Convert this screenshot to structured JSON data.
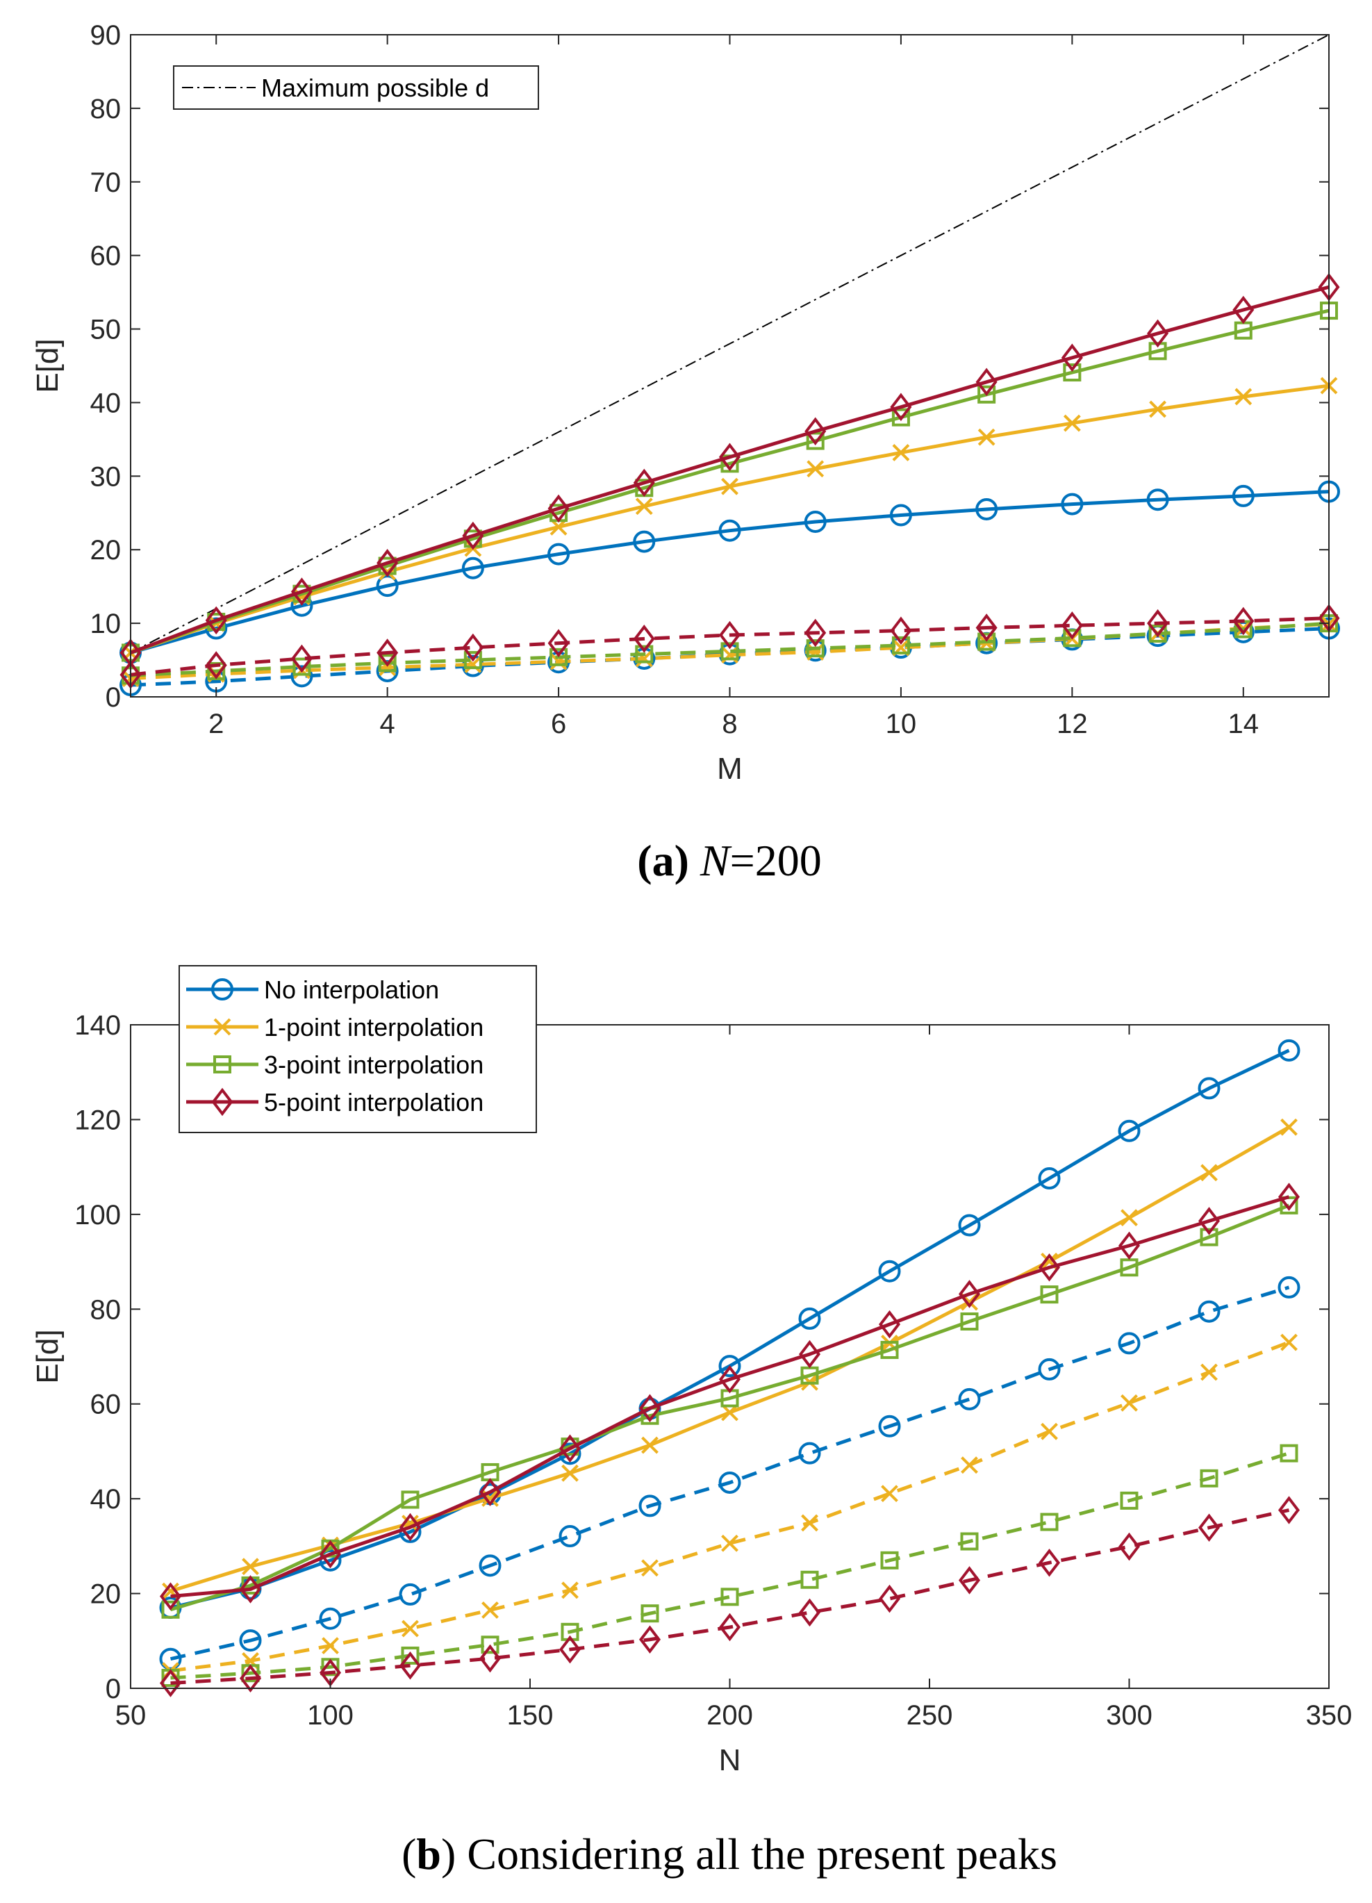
{
  "colors": {
    "no_interp": "#0072BD",
    "one_point": "#EDB120",
    "three_point": "#77AC30",
    "five_point": "#A2142F",
    "max_line": "#000000"
  },
  "chart_data": [
    {
      "type": "line",
      "caption_bold": "a",
      "caption_var": "N",
      "caption_rest": "=200",
      "xlabel": "M",
      "ylabel": "E[d]",
      "xlim": [
        1,
        15
      ],
      "ylim": [
        0,
        90
      ],
      "xticks": [
        2,
        4,
        6,
        8,
        10,
        12,
        14
      ],
      "yticks": [
        0,
        10,
        20,
        30,
        40,
        50,
        60,
        70,
        80,
        90
      ],
      "legend": {
        "position": "top-left",
        "entries": [
          "Maximum possible d"
        ]
      },
      "reference_line": {
        "name": "Maximum possible d",
        "x": [
          1,
          15
        ],
        "y": [
          6,
          90
        ],
        "style": "dash-dot"
      },
      "x": [
        1,
        2,
        3,
        4,
        5,
        6,
        7,
        8,
        9,
        10,
        11,
        12,
        13,
        14,
        15
      ],
      "series": [
        {
          "key": "no_interp",
          "marker": "circle",
          "style": "solid",
          "values": [
            6,
            9.3,
            12.4,
            15.1,
            17.5,
            19.4,
            21.1,
            22.6,
            23.8,
            24.7,
            25.5,
            26.2,
            26.8,
            27.3,
            27.9
          ]
        },
        {
          "key": "one_point",
          "marker": "x",
          "style": "solid",
          "values": [
            6,
            10,
            13.6,
            17,
            20.2,
            23.1,
            25.9,
            28.6,
            31,
            33.2,
            35.3,
            37.2,
            39.1,
            40.8,
            42.3
          ]
        },
        {
          "key": "three_point",
          "marker": "square",
          "style": "solid",
          "values": [
            6,
            10.2,
            14,
            17.8,
            21.5,
            25,
            28.4,
            31.7,
            34.8,
            38,
            41.1,
            44.1,
            47,
            49.8,
            52.5
          ]
        },
        {
          "key": "five_point",
          "marker": "diamond",
          "style": "solid",
          "values": [
            6,
            10.4,
            14.3,
            18.2,
            21.9,
            25.6,
            29.1,
            32.6,
            36.1,
            39.4,
            42.8,
            46.1,
            49.4,
            52.6,
            55.7
          ]
        },
        {
          "key": "no_interp",
          "marker": "circle",
          "style": "dashed",
          "values": [
            1.6,
            2.1,
            2.8,
            3.5,
            4.2,
            4.7,
            5.2,
            5.8,
            6.3,
            6.7,
            7.3,
            7.8,
            8.3,
            8.8,
            9.3
          ]
        },
        {
          "key": "one_point",
          "marker": "x",
          "style": "dashed",
          "values": [
            2.5,
            3.1,
            3.6,
            4,
            4.4,
            4.8,
            5.2,
            5.7,
            6.1,
            6.7,
            7.3,
            7.9,
            8.6,
            9.3,
            9.9
          ]
        },
        {
          "key": "three_point",
          "marker": "square",
          "style": "dashed",
          "values": [
            2.9,
            3.5,
            4.1,
            4.6,
            5,
            5.4,
            5.8,
            6.2,
            6.6,
            7,
            7.5,
            8,
            8.6,
            9.2,
            10
          ]
        },
        {
          "key": "five_point",
          "marker": "diamond",
          "style": "dashed",
          "values": [
            3,
            4.3,
            5.2,
            6,
            6.7,
            7.3,
            7.9,
            8.4,
            8.7,
            9,
            9.4,
            9.7,
            10,
            10.3,
            10.7
          ]
        }
      ]
    },
    {
      "type": "line",
      "caption_bold": "b",
      "caption_rest": "Considering all the present peaks",
      "xlabel": "N",
      "ylabel": "E[d]",
      "xlim": [
        50,
        350
      ],
      "ylim": [
        0,
        140
      ],
      "xticks": [
        50,
        100,
        150,
        200,
        250,
        300,
        350
      ],
      "yticks": [
        0,
        20,
        40,
        60,
        80,
        100,
        120,
        140
      ],
      "legend": {
        "position": "top-left",
        "entries": [
          {
            "key": "no_interp",
            "marker": "circle",
            "label": "No interpolation"
          },
          {
            "key": "one_point",
            "marker": "x",
            "label": "1-point interpolation"
          },
          {
            "key": "three_point",
            "marker": "square",
            "label": "3-point interpolation"
          },
          {
            "key": "five_point",
            "marker": "diamond",
            "label": "5-point interpolation"
          }
        ]
      },
      "x": [
        60,
        80,
        100,
        120,
        140,
        160,
        180,
        200,
        220,
        240,
        260,
        280,
        300,
        320,
        340
      ],
      "series": [
        {
          "key": "no_interp",
          "marker": "circle",
          "style": "solid",
          "values": [
            17,
            21,
            27,
            33,
            41,
            49.5,
            59,
            68,
            78,
            88,
            97.7,
            107.6,
            117.6,
            126.6,
            134.6
          ]
        },
        {
          "key": "one_point",
          "marker": "x",
          "style": "solid",
          "values": [
            20.5,
            25.7,
            30.2,
            34.8,
            40.1,
            45.4,
            51.3,
            58.2,
            64.6,
            72.8,
            81.5,
            90.1,
            99.3,
            108.8,
            118.4
          ]
        },
        {
          "key": "three_point",
          "marker": "square",
          "style": "solid",
          "values": [
            16.6,
            21.7,
            29.5,
            39.8,
            45.6,
            51,
            57.5,
            61.2,
            66,
            71.4,
            77.4,
            83.1,
            88.8,
            95.2,
            101.9
          ]
        },
        {
          "key": "five_point",
          "marker": "diamond",
          "style": "solid",
          "values": [
            19.4,
            20.9,
            28.3,
            34,
            41.4,
            50.6,
            59.1,
            65.2,
            70.5,
            76.8,
            83.2,
            88.8,
            93.4,
            98.6,
            103.7
          ]
        },
        {
          "key": "no_interp",
          "marker": "circle",
          "style": "dashed",
          "values": [
            6.2,
            10.1,
            14.7,
            19.8,
            25.9,
            32.1,
            38.5,
            43.4,
            49.6,
            55.3,
            61,
            67.3,
            72.8,
            79.5,
            84.6
          ]
        },
        {
          "key": "one_point",
          "marker": "x",
          "style": "dashed",
          "values": [
            3.7,
            5.8,
            9,
            12.6,
            16.5,
            20.7,
            25.4,
            30.6,
            34.9,
            41.1,
            47.1,
            54.2,
            60.2,
            66.7,
            73
          ]
        },
        {
          "key": "three_point",
          "marker": "square",
          "style": "dashed",
          "values": [
            2.2,
            3.2,
            4.5,
            6.9,
            9.2,
            11.9,
            15.8,
            19.3,
            22.9,
            27,
            31,
            35.1,
            39.6,
            44.3,
            49.6
          ]
        },
        {
          "key": "five_point",
          "marker": "diamond",
          "style": "dashed",
          "values": [
            1.1,
            2.1,
            3.3,
            4.8,
            6.3,
            8.2,
            10.3,
            12.9,
            16,
            18.9,
            22.8,
            26.5,
            29.9,
            33.9,
            37.6
          ]
        }
      ]
    }
  ]
}
